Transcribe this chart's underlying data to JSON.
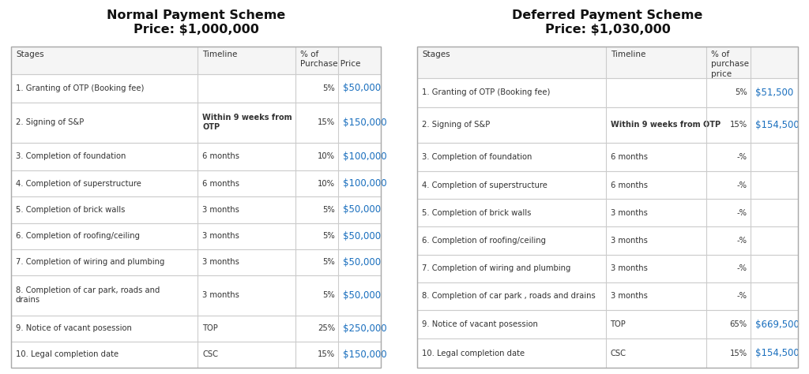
{
  "left_title": "Normal Payment Scheme",
  "left_subtitle": "Price: $1,000,000",
  "right_title": "Deferred Payment Scheme",
  "right_subtitle": "Price: $1,030,000",
  "left_headers": [
    "Stages",
    "Timeline",
    "% of\nPurchase Price"
  ],
  "right_headers": [
    "Stages",
    "Timeline",
    "% of\npurchase\nprice"
  ],
  "left_rows": [
    [
      "1. Granting of OTP (Booking fee)",
      "",
      "5%",
      "$50,000"
    ],
    [
      "2. Signing of S&P",
      "Within 9 weeks from\nOTP",
      "15%",
      "$150,000"
    ],
    [
      "3. Completion of foundation",
      "6 months",
      "10%",
      "$100,000"
    ],
    [
      "4. Completion of superstructure",
      "6 months",
      "10%",
      "$100,000"
    ],
    [
      "5. Completion of brick walls",
      "3 months",
      "5%",
      "$50,000"
    ],
    [
      "6. Completion of roofing/ceiling",
      "3 months",
      "5%",
      "$50,000"
    ],
    [
      "7. Completion of wiring and plumbing",
      "3 months",
      "5%",
      "$50,000"
    ],
    [
      "8. Completion of car park, roads and\ndrains",
      "3 months",
      "5%",
      "$50,000"
    ],
    [
      "9. Notice of vacant posession",
      "TOP",
      "25%",
      "$250,000"
    ],
    [
      "10. Legal completion date",
      "CSC",
      "15%",
      "$150,000"
    ]
  ],
  "right_rows": [
    [
      "1. Granting of OTP (Booking fee)",
      "",
      "5%",
      "$51,500"
    ],
    [
      "2. Signing of S&P",
      "Within 9 weeks from OTP",
      "15%",
      "$154,500"
    ],
    [
      "3. Completion of foundation",
      "6 months",
      "-%",
      ""
    ],
    [
      "4. Completion of superstructure",
      "6 months",
      "-%",
      ""
    ],
    [
      "5. Completion of brick walls",
      "3 months",
      "-%",
      ""
    ],
    [
      "6. Completion of roofing/ceiling",
      "3 months",
      "-%",
      ""
    ],
    [
      "7. Completion of wiring and plumbing",
      "3 months",
      "-%",
      ""
    ],
    [
      "8. Completion of car park , roads and drains",
      "3 months",
      "-%",
      ""
    ],
    [
      "9. Notice of vacant posession",
      "TOP",
      "65%",
      "$669,500"
    ],
    [
      "10. Legal completion date",
      "CSC",
      "15%",
      "$154,500"
    ]
  ],
  "blue_color": "#1a6fbe",
  "header_bg": "#f5f5f5",
  "border_color": "#cccccc",
  "title_color": "#111111",
  "text_color": "#333333",
  "bg_color": "#ffffff"
}
